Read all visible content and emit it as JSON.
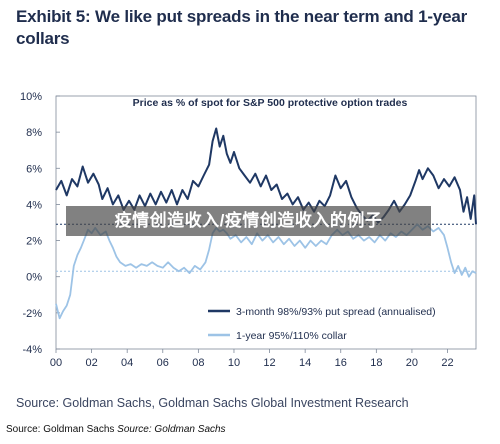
{
  "header": {
    "title": "Exhibit 5: We like put spreads in the near term and 1-year collars"
  },
  "source": {
    "main": "Source: Goldman Sachs, Goldman Sachs Global Investment Research",
    "small_prefix": "Source: Goldman Sachs",
    "small_italic": "Source: Goldman Sachs"
  },
  "overlay_text": "疫情创造收入/疫情创造收入的例子",
  "chart_data": {
    "type": "line",
    "title": "Price as % of spot for S&P 500 protective option trades",
    "xlabel": "",
    "ylabel": "",
    "xlim": [
      2000,
      2023.6
    ],
    "ylim": [
      -4,
      10
    ],
    "x_ticks": [
      {
        "value": 2000,
        "label": "00"
      },
      {
        "value": 2002,
        "label": "02"
      },
      {
        "value": 2004,
        "label": "04"
      },
      {
        "value": 2006,
        "label": "06"
      },
      {
        "value": 2008,
        "label": "08"
      },
      {
        "value": 2010,
        "label": "10"
      },
      {
        "value": 2012,
        "label": "12"
      },
      {
        "value": 2014,
        "label": "14"
      },
      {
        "value": 2016,
        "label": "16"
      },
      {
        "value": 2018,
        "label": "18"
      },
      {
        "value": 2020,
        "label": "20"
      },
      {
        "value": 2022,
        "label": "22"
      }
    ],
    "y_ticks": [
      {
        "value": 10,
        "label": "10%"
      },
      {
        "value": 8,
        "label": "8%"
      },
      {
        "value": 6,
        "label": "6%"
      },
      {
        "value": 4,
        "label": "4%"
      },
      {
        "value": 2,
        "label": "2%"
      },
      {
        "value": 0,
        "label": "0%"
      },
      {
        "value": -2,
        "label": "-2%"
      },
      {
        "value": -4,
        "label": "-4%"
      }
    ],
    "legend_position": "bottom-right",
    "series": [
      {
        "name": "3-month 98%/93% put spread (annualised)",
        "color": "#1f3864",
        "reference_line": 2.9,
        "points": [
          [
            2000.0,
            4.8
          ],
          [
            2000.3,
            5.3
          ],
          [
            2000.6,
            4.5
          ],
          [
            2000.9,
            5.4
          ],
          [
            2001.2,
            5.0
          ],
          [
            2001.5,
            6.1
          ],
          [
            2001.8,
            5.2
          ],
          [
            2002.1,
            5.7
          ],
          [
            2002.4,
            5.1
          ],
          [
            2002.6,
            4.3
          ],
          [
            2002.9,
            4.9
          ],
          [
            2003.2,
            4.0
          ],
          [
            2003.5,
            4.5
          ],
          [
            2003.8,
            3.7
          ],
          [
            2004.1,
            4.2
          ],
          [
            2004.4,
            3.7
          ],
          [
            2004.7,
            4.5
          ],
          [
            2005.0,
            3.9
          ],
          [
            2005.3,
            4.6
          ],
          [
            2005.6,
            4.0
          ],
          [
            2005.9,
            4.7
          ],
          [
            2006.2,
            4.1
          ],
          [
            2006.5,
            4.8
          ],
          [
            2006.8,
            4.0
          ],
          [
            2007.1,
            4.8
          ],
          [
            2007.4,
            4.3
          ],
          [
            2007.7,
            5.3
          ],
          [
            2008.0,
            5.0
          ],
          [
            2008.3,
            5.6
          ],
          [
            2008.6,
            6.2
          ],
          [
            2008.8,
            7.5
          ],
          [
            2009.0,
            8.2
          ],
          [
            2009.2,
            7.2
          ],
          [
            2009.4,
            7.8
          ],
          [
            2009.6,
            6.8
          ],
          [
            2009.8,
            6.3
          ],
          [
            2010.0,
            6.9
          ],
          [
            2010.3,
            6.0
          ],
          [
            2010.6,
            5.6
          ],
          [
            2010.9,
            5.2
          ],
          [
            2011.2,
            5.7
          ],
          [
            2011.5,
            5.0
          ],
          [
            2011.8,
            5.6
          ],
          [
            2012.1,
            4.8
          ],
          [
            2012.4,
            5.1
          ],
          [
            2012.7,
            4.3
          ],
          [
            2013.0,
            4.6
          ],
          [
            2013.3,
            4.0
          ],
          [
            2013.6,
            4.4
          ],
          [
            2013.9,
            3.7
          ],
          [
            2014.2,
            4.1
          ],
          [
            2014.5,
            3.6
          ],
          [
            2014.8,
            4.2
          ],
          [
            2015.1,
            3.9
          ],
          [
            2015.4,
            4.5
          ],
          [
            2015.7,
            5.6
          ],
          [
            2016.0,
            4.9
          ],
          [
            2016.3,
            5.3
          ],
          [
            2016.6,
            4.4
          ],
          [
            2016.9,
            3.8
          ],
          [
            2017.2,
            3.4
          ],
          [
            2017.5,
            3.1
          ],
          [
            2017.8,
            3.4
          ],
          [
            2018.1,
            3.0
          ],
          [
            2018.4,
            3.3
          ],
          [
            2018.7,
            3.7
          ],
          [
            2019.0,
            4.2
          ],
          [
            2019.3,
            3.6
          ],
          [
            2019.6,
            4.0
          ],
          [
            2019.9,
            4.5
          ],
          [
            2020.2,
            5.3
          ],
          [
            2020.4,
            5.9
          ],
          [
            2020.6,
            5.4
          ],
          [
            2020.9,
            6.0
          ],
          [
            2021.2,
            5.6
          ],
          [
            2021.5,
            4.9
          ],
          [
            2021.8,
            5.4
          ],
          [
            2022.1,
            5.0
          ],
          [
            2022.4,
            5.5
          ],
          [
            2022.7,
            4.8
          ],
          [
            2022.9,
            3.6
          ],
          [
            2023.1,
            4.4
          ],
          [
            2023.3,
            3.2
          ],
          [
            2023.5,
            4.5
          ],
          [
            2023.6,
            2.9
          ]
        ]
      },
      {
        "name": "1-year 95%/110% collar",
        "color": "#9dc3e6",
        "reference_line": 0.3,
        "points": [
          [
            2000.0,
            -1.5
          ],
          [
            2000.2,
            -2.3
          ],
          [
            2000.4,
            -1.9
          ],
          [
            2000.6,
            -1.6
          ],
          [
            2000.8,
            -1.0
          ],
          [
            2001.0,
            0.6
          ],
          [
            2001.2,
            1.2
          ],
          [
            2001.4,
            1.6
          ],
          [
            2001.6,
            2.1
          ],
          [
            2001.8,
            2.6
          ],
          [
            2002.0,
            2.4
          ],
          [
            2002.2,
            2.7
          ],
          [
            2002.5,
            2.3
          ],
          [
            2002.8,
            2.5
          ],
          [
            2003.0,
            2.0
          ],
          [
            2003.2,
            1.6
          ],
          [
            2003.4,
            1.1
          ],
          [
            2003.6,
            0.8
          ],
          [
            2003.9,
            0.6
          ],
          [
            2004.2,
            0.7
          ],
          [
            2004.5,
            0.5
          ],
          [
            2004.8,
            0.7
          ],
          [
            2005.1,
            0.6
          ],
          [
            2005.4,
            0.8
          ],
          [
            2005.7,
            0.6
          ],
          [
            2006.0,
            0.5
          ],
          [
            2006.3,
            0.8
          ],
          [
            2006.6,
            0.5
          ],
          [
            2006.9,
            0.3
          ],
          [
            2007.2,
            0.5
          ],
          [
            2007.5,
            0.2
          ],
          [
            2007.8,
            0.6
          ],
          [
            2008.1,
            0.4
          ],
          [
            2008.4,
            0.8
          ],
          [
            2008.6,
            1.5
          ],
          [
            2008.8,
            2.4
          ],
          [
            2009.0,
            2.7
          ],
          [
            2009.2,
            2.5
          ],
          [
            2009.4,
            2.6
          ],
          [
            2009.6,
            2.4
          ],
          [
            2009.8,
            2.1
          ],
          [
            2010.1,
            2.3
          ],
          [
            2010.4,
            1.9
          ],
          [
            2010.7,
            2.2
          ],
          [
            2011.0,
            1.8
          ],
          [
            2011.3,
            2.4
          ],
          [
            2011.6,
            2.0
          ],
          [
            2011.9,
            2.3
          ],
          [
            2012.2,
            1.9
          ],
          [
            2012.5,
            2.2
          ],
          [
            2012.8,
            1.8
          ],
          [
            2013.1,
            2.1
          ],
          [
            2013.4,
            1.7
          ],
          [
            2013.7,
            2.0
          ],
          [
            2014.0,
            1.6
          ],
          [
            2014.3,
            2.0
          ],
          [
            2014.6,
            1.7
          ],
          [
            2014.9,
            2.0
          ],
          [
            2015.2,
            1.8
          ],
          [
            2015.5,
            2.3
          ],
          [
            2015.8,
            2.6
          ],
          [
            2016.1,
            2.3
          ],
          [
            2016.4,
            2.5
          ],
          [
            2016.7,
            2.1
          ],
          [
            2017.0,
            2.3
          ],
          [
            2017.3,
            2.0
          ],
          [
            2017.6,
            2.2
          ],
          [
            2017.9,
            1.9
          ],
          [
            2018.2,
            2.3
          ],
          [
            2018.5,
            2.0
          ],
          [
            2018.8,
            2.4
          ],
          [
            2019.1,
            2.2
          ],
          [
            2019.4,
            2.5
          ],
          [
            2019.7,
            2.3
          ],
          [
            2020.0,
            2.6
          ],
          [
            2020.3,
            2.9
          ],
          [
            2020.6,
            2.6
          ],
          [
            2020.9,
            2.8
          ],
          [
            2021.2,
            2.5
          ],
          [
            2021.5,
            2.7
          ],
          [
            2021.8,
            2.3
          ],
          [
            2022.0,
            1.6
          ],
          [
            2022.2,
            0.8
          ],
          [
            2022.4,
            0.2
          ],
          [
            2022.6,
            0.6
          ],
          [
            2022.8,
            0.1
          ],
          [
            2023.0,
            0.5
          ],
          [
            2023.2,
            0.0
          ],
          [
            2023.4,
            0.3
          ],
          [
            2023.6,
            0.2
          ]
        ]
      }
    ]
  }
}
